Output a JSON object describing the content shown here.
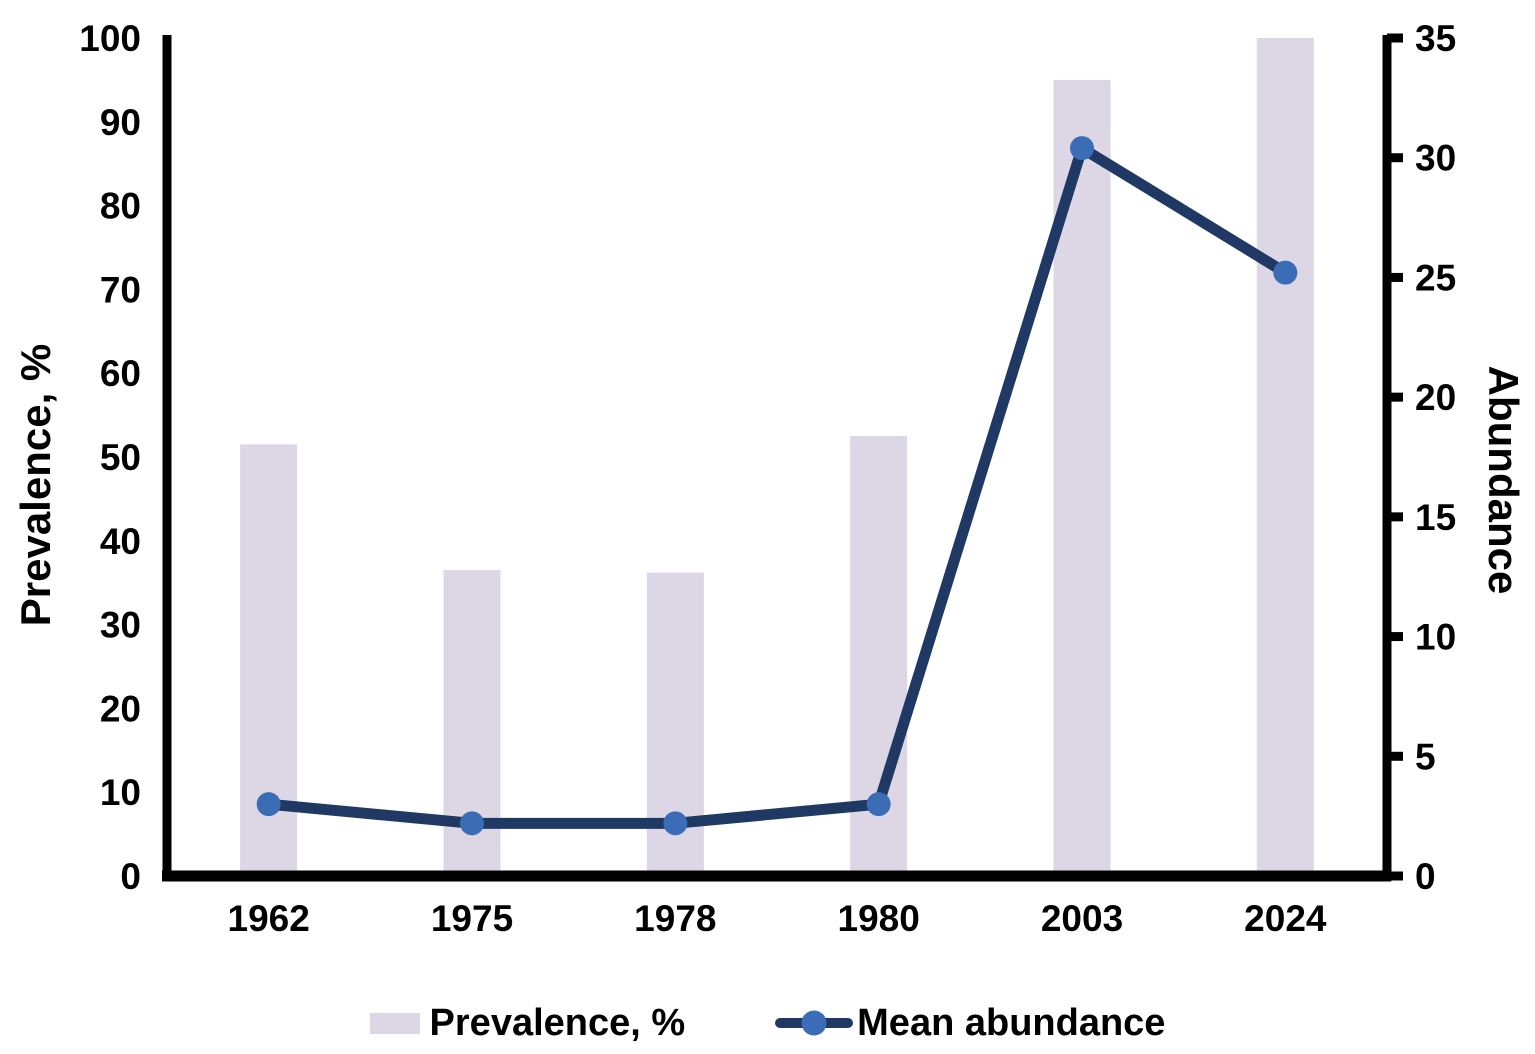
{
  "chart_data": {
    "type": "combo-bar-line",
    "categories": [
      "1962",
      "1975",
      "1978",
      "1980",
      "2003",
      "2024"
    ],
    "series": [
      {
        "name": "Prevalence, %",
        "type": "bar",
        "axis": "left",
        "color": "#ddd6e5",
        "values": [
          51.5,
          36.5,
          36.2,
          52.5,
          95,
          100
        ]
      },
      {
        "name": "Mean abundance",
        "type": "line",
        "axis": "right",
        "line_color": "#1f3864",
        "marker_color": "#3a6db5",
        "values": [
          3.0,
          2.2,
          2.2,
          3.0,
          30.4,
          25.2
        ]
      }
    ],
    "left_axis": {
      "label": "Prevalence, %",
      "min": 0,
      "max": 100,
      "step": 10,
      "tick_labels": [
        "0",
        "10",
        "20",
        "30",
        "40",
        "50",
        "60",
        "70",
        "80",
        "90",
        "100"
      ]
    },
    "right_axis": {
      "label": "Abundance",
      "min": 0,
      "max": 35,
      "step": 5,
      "tick_labels": [
        "0",
        "5",
        "10",
        "15",
        "20",
        "25",
        "30",
        "35"
      ]
    },
    "x_axis": {
      "tick_labels": [
        "1962",
        "1975",
        "1978",
        "1980",
        "2003",
        "2024"
      ]
    },
    "legend": [
      {
        "label": "Prevalence, %",
        "swatch": "bar"
      },
      {
        "label": "Mean abundance",
        "swatch": "line-marker"
      }
    ],
    "grid": false,
    "legend_position": "bottom-center",
    "axis_color": "#000000"
  }
}
